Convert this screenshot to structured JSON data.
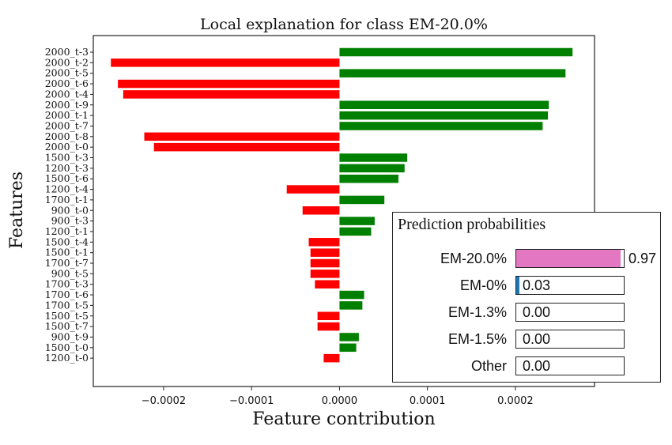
{
  "chart_data": {
    "type": "bar",
    "orientation": "horizontal",
    "title": "Local explanation for class EM-20.0%",
    "xlabel": "Feature contribution",
    "ylabel": "Features",
    "xlim": [
      -0.00028,
      0.00029
    ],
    "xticks": [
      -0.0002,
      -0.0001,
      0.0,
      0.0001,
      0.0002
    ],
    "xtick_labels": [
      "−0.0002",
      "−0.0001",
      "0.0000",
      "0.0001",
      "0.0002"
    ],
    "positive_color": "#008000",
    "negative_color": "#ff0000",
    "categories": [
      "2000_t-3",
      "2000_t-2",
      "2000_t-5",
      "2000_t-6",
      "2000_t-4",
      "2000_t-9",
      "2000_t-1",
      "2000_t-7",
      "2000_t-8",
      "2000_t-0",
      "1500_t-3",
      "1200_t-3",
      "1500_t-6",
      "1200_t-4",
      "1700_t-1",
      "900_t-0",
      "900_t-3",
      "1200_t-1",
      "1500_t-4",
      "1500_t-1",
      "1700_t-7",
      "900_t-5",
      "1700_t-3",
      "1700_t-6",
      "1700_t-5",
      "1500_t-5",
      "1500_t-7",
      "900_t-9",
      "1500_t-0",
      "1200_t-0"
    ],
    "values": [
      0.000265,
      -0.00026,
      0.000257,
      -0.000252,
      -0.000246,
      0.000238,
      0.000237,
      0.000231,
      -0.000222,
      -0.000211,
      7.7e-05,
      7.4e-05,
      6.7e-05,
      -6e-05,
      5.1e-05,
      -4.2e-05,
      4e-05,
      3.6e-05,
      -3.5e-05,
      -3.3e-05,
      -3.3e-05,
      -3.3e-05,
      -2.8e-05,
      2.8e-05,
      2.6e-05,
      -2.5e-05,
      -2.5e-05,
      2.2e-05,
      1.9e-05,
      -1.8e-05
    ]
  },
  "prediction_probabilities": {
    "title": "Prediction probabilities",
    "items": [
      {
        "label": "EM-20.0%",
        "value": 0.97,
        "value_text": "0.97",
        "color": "#e377c2"
      },
      {
        "label": "EM-0%",
        "value": 0.03,
        "value_text": "0.03",
        "color": "#1f77b4"
      },
      {
        "label": "EM-1.3%",
        "value": 0.0,
        "value_text": "0.00",
        "color": "#ff7f0e"
      },
      {
        "label": "EM-1.5%",
        "value": 0.0,
        "value_text": "0.00",
        "color": "#2ca02c"
      },
      {
        "label": "Other",
        "value": 0.0,
        "value_text": "0.00",
        "color": "#7f7f7f"
      }
    ]
  }
}
